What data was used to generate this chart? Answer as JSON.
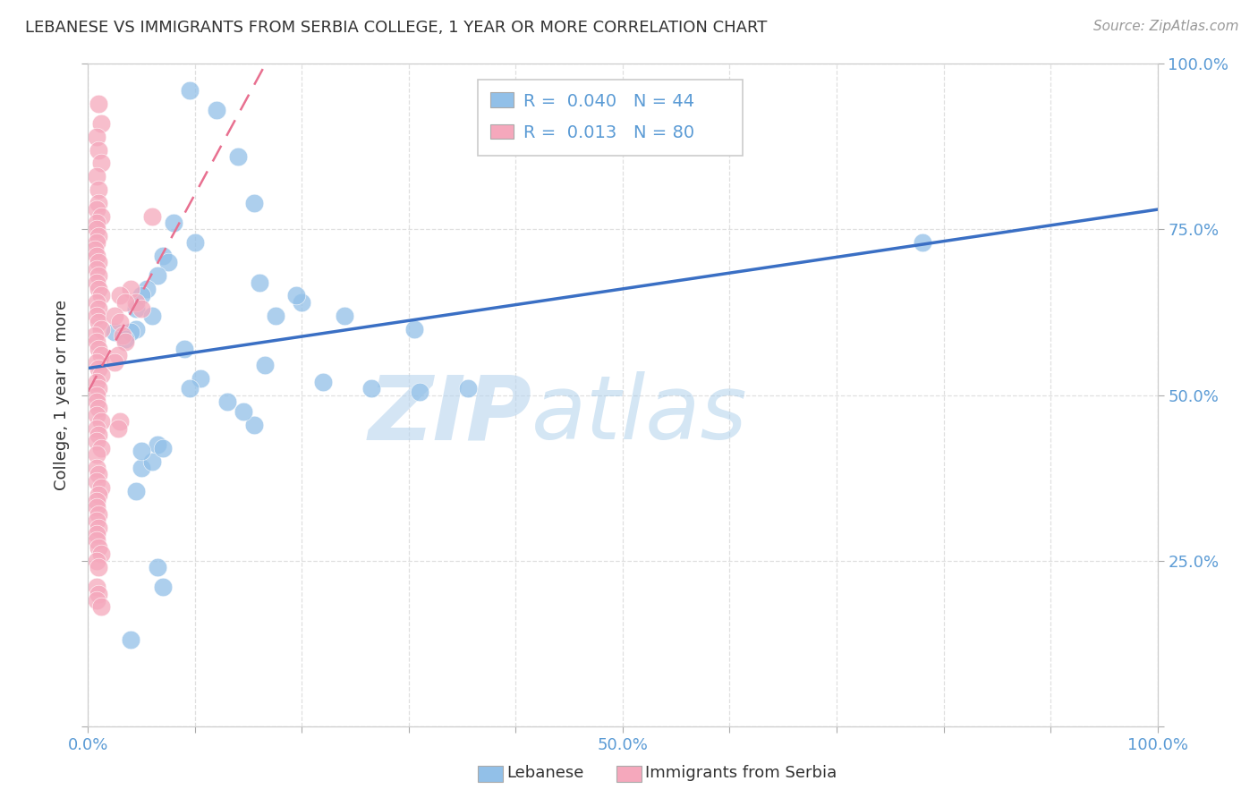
{
  "title": "LEBANESE VS IMMIGRANTS FROM SERBIA COLLEGE, 1 YEAR OR MORE CORRELATION CHART",
  "source": "Source: ZipAtlas.com",
  "ylabel": "College, 1 year or more",
  "xlim": [
    0.0,
    1.0
  ],
  "ylim": [
    0.0,
    1.0
  ],
  "legend_R1": "0.040",
  "legend_N1": "44",
  "legend_R2": "0.013",
  "legend_N2": "80",
  "legend_label1": "Lebanese",
  "legend_label2": "Immigrants from Serbia",
  "color_blue": "#92c0e8",
  "color_pink": "#f5a8bc",
  "line_blue": "#3a6fc4",
  "line_pink": "#e87090",
  "watermark_zip": "ZIP",
  "watermark_atlas": "atlas",
  "background_color": "#ffffff",
  "grid_color": "#d8d8d8",
  "blue_x": [
    0.025,
    0.095,
    0.12,
    0.14,
    0.155,
    0.08,
    0.1,
    0.07,
    0.075,
    0.065,
    0.055,
    0.05,
    0.045,
    0.06,
    0.045,
    0.04,
    0.035,
    0.09,
    0.165,
    0.105,
    0.095,
    0.13,
    0.2,
    0.24,
    0.305,
    0.16,
    0.195,
    0.175,
    0.22,
    0.265,
    0.31,
    0.355,
    0.155,
    0.145,
    0.065,
    0.05,
    0.06,
    0.05,
    0.045,
    0.07,
    0.065,
    0.07,
    0.78,
    0.04
  ],
  "blue_y": [
    0.595,
    0.96,
    0.93,
    0.86,
    0.79,
    0.76,
    0.73,
    0.71,
    0.7,
    0.68,
    0.66,
    0.65,
    0.63,
    0.62,
    0.6,
    0.595,
    0.585,
    0.57,
    0.545,
    0.525,
    0.51,
    0.49,
    0.64,
    0.62,
    0.6,
    0.67,
    0.65,
    0.62,
    0.52,
    0.51,
    0.505,
    0.51,
    0.455,
    0.475,
    0.425,
    0.39,
    0.4,
    0.415,
    0.355,
    0.42,
    0.24,
    0.21,
    0.73,
    0.13
  ],
  "pink_x": [
    0.01,
    0.012,
    0.008,
    0.01,
    0.012,
    0.008,
    0.01,
    0.01,
    0.008,
    0.012,
    0.008,
    0.008,
    0.01,
    0.008,
    0.006,
    0.008,
    0.01,
    0.008,
    0.01,
    0.008,
    0.01,
    0.012,
    0.008,
    0.01,
    0.008,
    0.01,
    0.012,
    0.006,
    0.008,
    0.01,
    0.012,
    0.008,
    0.01,
    0.012,
    0.008,
    0.01,
    0.008,
    0.008,
    0.01,
    0.008,
    0.012,
    0.008,
    0.01,
    0.008,
    0.012,
    0.008,
    0.04,
    0.045,
    0.05,
    0.03,
    0.035,
    0.025,
    0.03,
    0.032,
    0.035,
    0.028,
    0.025,
    0.008,
    0.01,
    0.008,
    0.012,
    0.01,
    0.008,
    0.008,
    0.01,
    0.008,
    0.01,
    0.008,
    0.008,
    0.01,
    0.012,
    0.008,
    0.01,
    0.03,
    0.028,
    0.008,
    0.01,
    0.008,
    0.012,
    0.06
  ],
  "pink_y": [
    0.94,
    0.91,
    0.89,
    0.87,
    0.85,
    0.83,
    0.81,
    0.79,
    0.78,
    0.77,
    0.76,
    0.75,
    0.74,
    0.73,
    0.72,
    0.71,
    0.7,
    0.69,
    0.68,
    0.67,
    0.66,
    0.65,
    0.64,
    0.63,
    0.62,
    0.61,
    0.6,
    0.59,
    0.58,
    0.57,
    0.56,
    0.55,
    0.54,
    0.53,
    0.52,
    0.51,
    0.5,
    0.49,
    0.48,
    0.47,
    0.46,
    0.45,
    0.44,
    0.43,
    0.42,
    0.41,
    0.66,
    0.64,
    0.63,
    0.65,
    0.64,
    0.62,
    0.61,
    0.59,
    0.58,
    0.56,
    0.55,
    0.39,
    0.38,
    0.37,
    0.36,
    0.35,
    0.34,
    0.33,
    0.32,
    0.31,
    0.3,
    0.29,
    0.28,
    0.27,
    0.26,
    0.25,
    0.24,
    0.46,
    0.45,
    0.21,
    0.2,
    0.19,
    0.18,
    0.77
  ]
}
